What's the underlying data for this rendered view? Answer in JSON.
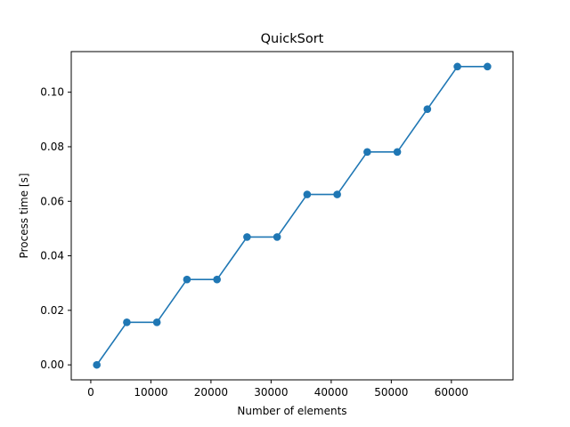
{
  "chart_data": {
    "type": "line",
    "title": "QuickSort",
    "xlabel": "Number of elements",
    "ylabel": "Process time [s]",
    "xlim": [
      -3250,
      70250
    ],
    "ylim": [
      -0.0055,
      0.1149
    ],
    "xticks": [
      0,
      10000,
      20000,
      30000,
      40000,
      50000,
      60000
    ],
    "yticks": [
      0.0,
      0.02,
      0.04,
      0.06,
      0.08,
      0.1
    ],
    "xtick_labels": [
      "0",
      "10000",
      "20000",
      "30000",
      "40000",
      "50000",
      "60000"
    ],
    "ytick_labels": [
      "0.00",
      "0.02",
      "0.04",
      "0.06",
      "0.08",
      "0.10"
    ],
    "grid": false,
    "legend": null,
    "series": [
      {
        "color": "#1f77b4",
        "marker": "circle",
        "x": [
          1000,
          6000,
          11000,
          16000,
          21000,
          26000,
          31000,
          36000,
          41000,
          46000,
          51000,
          56000,
          61000,
          66000
        ],
        "y": [
          0.0,
          0.0156,
          0.0156,
          0.0313,
          0.0313,
          0.0469,
          0.0469,
          0.0625,
          0.0625,
          0.0781,
          0.0781,
          0.0938,
          0.1094,
          0.1094
        ]
      }
    ]
  }
}
